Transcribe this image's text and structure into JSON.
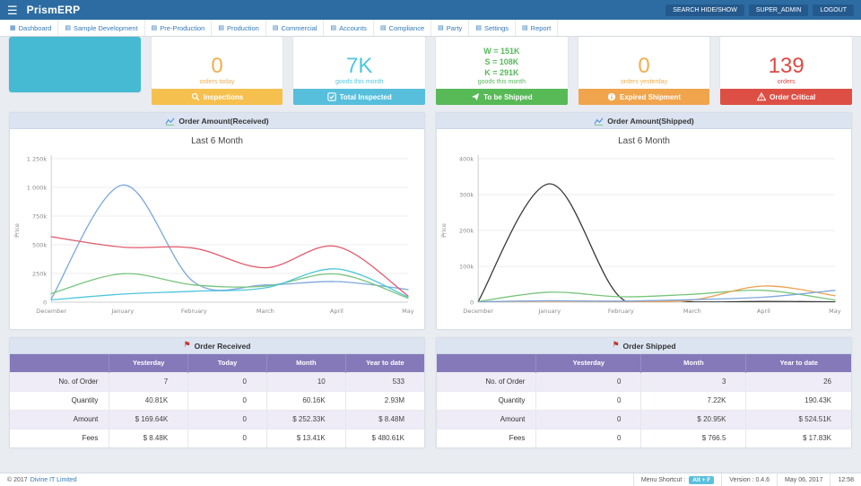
{
  "icons": {
    "hamburger": "☰",
    "flag": "⚑",
    "nav_dashboard": "▦",
    "nav_generic": "▤"
  },
  "topbar": {
    "title": "PrismERP",
    "search_button": "SEARCH HIDE/SHOW",
    "user_button": "SUPER_ADMIN",
    "logout_button": "LOGOUT"
  },
  "nav": {
    "items": [
      {
        "label": "Dashboard",
        "icon": "dashboard-icon"
      },
      {
        "label": "Sample Development",
        "icon": "menu-grid-icon"
      },
      {
        "label": "Pre-Production",
        "icon": "menu-grid-icon"
      },
      {
        "label": "Production",
        "icon": "menu-grid-icon"
      },
      {
        "label": "Commercial",
        "icon": "menu-grid-icon"
      },
      {
        "label": "Accounts",
        "icon": "menu-grid-icon"
      },
      {
        "label": "Compliance",
        "icon": "menu-grid-icon"
      },
      {
        "label": "Party",
        "icon": "menu-grid-icon"
      },
      {
        "label": "Settings",
        "icon": "menu-grid-icon"
      },
      {
        "label": "Report",
        "icon": "menu-grid-icon"
      }
    ]
  },
  "cards": [
    {
      "type": "placeholder",
      "color": "#46bad2"
    },
    {
      "value": "0",
      "caption": "orders today",
      "button": "Inspections",
      "icon": "search-icon",
      "color": "#f3ae4e",
      "button_color": "#f6c04f"
    },
    {
      "value": "7K",
      "caption": "goods this month",
      "button": "Total Inspected",
      "icon": "check-square-icon",
      "color": "#4fc6e0",
      "button_color": "#57bfdc"
    },
    {
      "values": [
        "W = 151K",
        "S = 108K",
        "K = 291K"
      ],
      "caption": "goods this month",
      "button": "To be Shipped",
      "icon": "ship-icon",
      "color": "#56b85a",
      "button_color": "#58b957"
    },
    {
      "value": "0",
      "caption": "orders yesterday",
      "button": "Expired Shipment",
      "icon": "info-icon",
      "color": "#f3ae4e",
      "button_color": "#f0a44c"
    },
    {
      "value": "139",
      "caption": "orders",
      "button": "Order Critical",
      "icon": "warning-icon",
      "color": "#e04844",
      "button_color": "#dd4f44"
    }
  ],
  "charts": {
    "received": {
      "header": "Order Amount(Received)",
      "icon": "line-chart-icon",
      "title": "Last 6 Month",
      "chart_data": {
        "type": "line",
        "x": [
          "December",
          "January",
          "February",
          "March",
          "April",
          "May"
        ],
        "ylabel": "Price",
        "yticks": [
          "0",
          "250k",
          "500k",
          "750k",
          "1 000k",
          "1 250k"
        ],
        "ymax": 1250,
        "unit": "thousands",
        "grid": true,
        "legend": "none",
        "series": [
          {
            "name": "blue",
            "color": "#7da7dd",
            "values": [
              30,
              1020,
              175,
              150,
              180,
              110
            ]
          },
          {
            "name": "red",
            "color": "#e25a6b",
            "values": [
              570,
              480,
              470,
              300,
              485,
              55
            ]
          },
          {
            "name": "green",
            "color": "#77c57c",
            "values": [
              75,
              248,
              150,
              140,
              245,
              35
            ]
          },
          {
            "name": "teal",
            "color": "#4ec6da",
            "values": [
              20,
              70,
              95,
              125,
              290,
              45
            ]
          }
        ]
      }
    },
    "shipped": {
      "header": "Order Amount(Shipped)",
      "icon": "line-chart-icon",
      "title": "Last 6 Month",
      "chart_data": {
        "type": "line",
        "x": [
          "December",
          "January",
          "February",
          "March",
          "April",
          "May"
        ],
        "ylabel": "Price",
        "yticks": [
          "0",
          "100k",
          "200k",
          "300k",
          "400k"
        ],
        "ymax": 400,
        "unit": "thousands",
        "grid": true,
        "legend": "none",
        "series": [
          {
            "name": "black",
            "color": "#3a3a3a",
            "values": [
              2,
              330,
              12,
              1,
              2,
              1
            ]
          },
          {
            "name": "green",
            "color": "#77c57c",
            "values": [
              2,
              28,
              15,
              22,
              33,
              6
            ]
          },
          {
            "name": "orange",
            "color": "#eea04e",
            "values": [
              1,
              3,
              2,
              6,
              45,
              18
            ]
          },
          {
            "name": "blue",
            "color": "#7da7dd",
            "values": [
              1,
              4,
              3,
              7,
              14,
              33
            ]
          }
        ]
      }
    }
  },
  "tables": {
    "received": {
      "header": "Order Received",
      "icon": "flag-icon",
      "columns": [
        "",
        "Yesterday",
        "Today",
        "Month",
        "Year to date"
      ],
      "rows": [
        [
          "No. of Order",
          "7",
          "0",
          "10",
          "533"
        ],
        [
          "Quantity",
          "40.81K",
          "0",
          "60.16K",
          "2.93M"
        ],
        [
          "Amount",
          "$ 169.64K",
          "0",
          "$ 252.33K",
          "$ 8.48M"
        ],
        [
          "Fees",
          "$ 8.48K",
          "0",
          "$ 13.41K",
          "$ 480.61K"
        ]
      ]
    },
    "shipped": {
      "header": "Order Shipped",
      "icon": "flag-icon",
      "columns": [
        "",
        "Yesterday",
        "Month",
        "Year to date"
      ],
      "rows": [
        [
          "No. of Order",
          "0",
          "3",
          "26"
        ],
        [
          "Quantity",
          "0",
          "7.22K",
          "190.43K"
        ],
        [
          "Amount",
          "0",
          "$ 20.95K",
          "$ 524.51K"
        ],
        [
          "Fees",
          "0",
          "$ 766.5",
          "$ 17.83K"
        ]
      ]
    }
  },
  "footer": {
    "copyright": "© 2017",
    "company": "Divine IT Limited",
    "menu_shortcut_label": "Menu Shortcut :",
    "menu_shortcut_key": "Alt + F",
    "version": "Version : 0.4.6",
    "date": "May 06, 2017",
    "time": "12:58"
  }
}
